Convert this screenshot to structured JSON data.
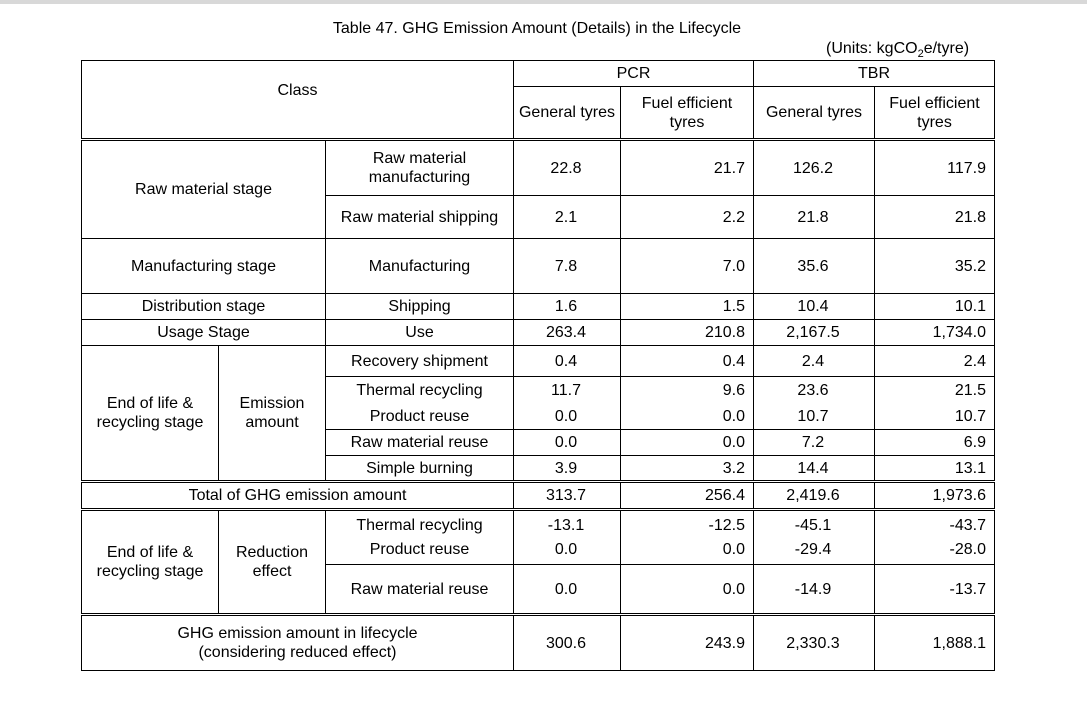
{
  "title": "Table 47. GHG Emission Amount (Details) in the Lifecycle",
  "units": "(Units: kgCO",
  "units_sub": "2",
  "units_tail": "e/tyre)",
  "header": {
    "class": "Class",
    "pcr": "PCR",
    "tbr": "TBR",
    "general": "General tyres",
    "fuel": "Fuel efficient tyres"
  },
  "rows": {
    "raw_stage": "Raw material stage",
    "raw_mfg": "Raw material manufacturing",
    "raw_mfg_vals": [
      "22.8",
      "21.7",
      "126.2",
      "117.9"
    ],
    "raw_ship": "Raw material shipping",
    "raw_ship_vals": [
      "2.1",
      "2.2",
      "21.8",
      "21.8"
    ],
    "mfg_stage": "Manufacturing stage",
    "mfg": "Manufacturing",
    "mfg_vals": [
      "7.8",
      "7.0",
      "35.6",
      "35.2"
    ],
    "dist_stage": "Distribution stage",
    "shipping": "Shipping",
    "shipping_vals": [
      "1.6",
      "1.5",
      "10.4",
      "10.1"
    ],
    "usage_stage": "Usage Stage",
    "use": "Use",
    "use_vals": [
      "263.4",
      "210.8",
      "2,167.5",
      "1,734.0"
    ],
    "eol_stage": "End of life & recycling stage",
    "emission_amount": "Emission amount",
    "recovery": "Recovery shipment",
    "recovery_vals": [
      "0.4",
      "0.4",
      "2.4",
      "2.4"
    ],
    "thermal": "Thermal recycling",
    "thermal_vals": [
      "11.7",
      "9.6",
      "23.6",
      "21.5"
    ],
    "product_reuse": "Product reuse",
    "product_reuse_vals": [
      "0.0",
      "0.0",
      "10.7",
      "10.7"
    ],
    "raw_reuse": "Raw material reuse",
    "raw_reuse_vals": [
      "0.0",
      "0.0",
      "7.2",
      "6.9"
    ],
    "simple_burning": "Simple burning",
    "simple_burning_vals": [
      "3.9",
      "3.2",
      "14.4",
      "13.1"
    ],
    "total": "Total of GHG emission amount",
    "total_vals": [
      "313.7",
      "256.4",
      "2,419.6",
      "1,973.6"
    ],
    "reduction_effect": "Reduction effect",
    "r_thermal_vals": [
      "-13.1",
      "-12.5",
      "-45.1",
      "-43.7"
    ],
    "r_product_vals": [
      "0.0",
      "0.0",
      "-29.4",
      "-28.0"
    ],
    "r_raw_vals": [
      "0.0",
      "0.0",
      "-14.9",
      "-13.7"
    ],
    "lifecycle_line1": "GHG emission amount in lifecycle",
    "lifecycle_line2": "(considering reduced effect)",
    "lifecycle_vals": [
      "300.6",
      "243.9",
      "2,330.3",
      "1,888.1"
    ]
  }
}
